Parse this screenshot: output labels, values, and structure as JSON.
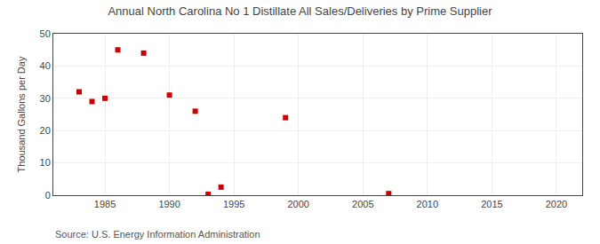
{
  "chart_data": {
    "type": "scatter",
    "title": "Annual North Carolina No 1 Distillate All Sales/Deliveries by Prime Supplier",
    "y_label": "Thousand Gallons per Day",
    "annotations": [
      "Source: U.S. Energy Information Administration"
    ],
    "x": [
      1983,
      1984,
      1985,
      1986,
      1988,
      1990,
      1992,
      1993,
      1994,
      1999,
      2007
    ],
    "values": [
      32,
      29,
      30,
      45,
      44,
      31,
      26,
      0.3,
      2.5,
      24,
      0.5
    ],
    "color": "#cc0000",
    "marker": "square",
    "xlim": [
      1981,
      2022
    ],
    "ylim": [
      0,
      50
    ],
    "xticks": [
      1985,
      1990,
      1995,
      2000,
      2005,
      2010,
      2015,
      2020
    ],
    "yticks": [
      0,
      10,
      20,
      30,
      40,
      50
    ],
    "grid": true
  }
}
